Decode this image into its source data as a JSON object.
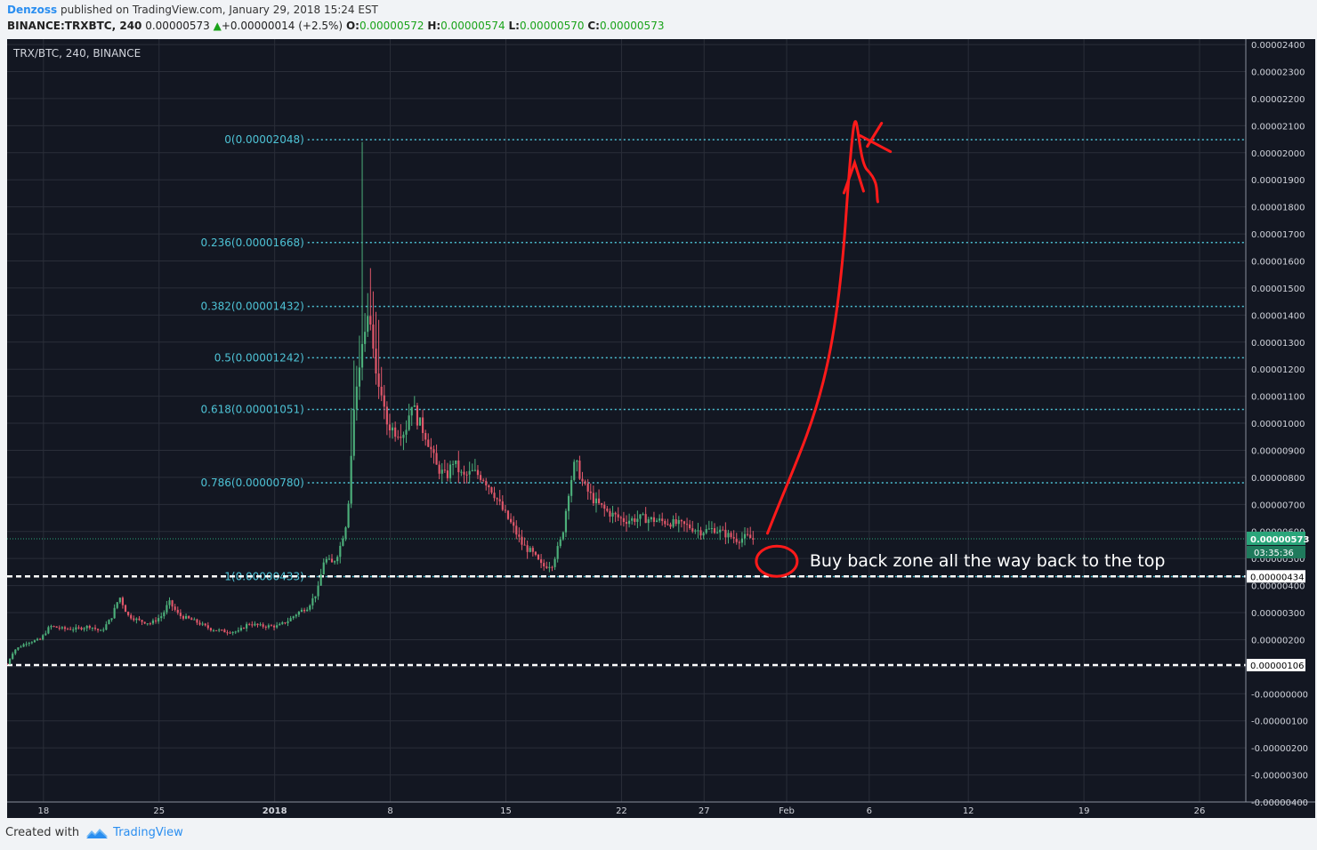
{
  "header": {
    "author": "Denzoss",
    "published_text": "published on TradingView.com, January 29, 2018 15:24 EST",
    "symbol": "BINANCE:TRXBTC, 240",
    "last": "0.00000573",
    "change": "+0.00000014 (+2.5%)",
    "open_label": "O:",
    "open": "0.00000572",
    "high_label": "H:",
    "high": "0.00000574",
    "low_label": "L:",
    "low": "0.00000570",
    "close_label": "C:",
    "close": "0.00000573"
  },
  "footer": {
    "created_with": "Created with",
    "brand": "TradingView"
  },
  "colors": {
    "background": "#131722",
    "grid": "#2a2e39",
    "fib": "#4ec3d6",
    "up": "#4caf7a",
    "down": "#e0576a",
    "annotation": "#ff1a1a",
    "price_badge": "#2aa57a"
  },
  "chart_data": {
    "type": "candlestick",
    "title": "TRX/BTC, 240, BINANCE",
    "ylim": [
      -4e-06,
      2.42e-05
    ],
    "y_ticks": [
      "0.00002400",
      "0.00002300",
      "0.00002200",
      "0.00002100",
      "0.00002000",
      "0.00001900",
      "0.00001800",
      "0.00001700",
      "0.00001600",
      "0.00001500",
      "0.00001400",
      "0.00001300",
      "0.00001200",
      "0.00001100",
      "0.00001000",
      "0.00000900",
      "0.00000800",
      "0.00000700",
      "0.00000600",
      "0.00000500",
      "0.00000400",
      "0.00000300",
      "0.00000200",
      "0.00000100",
      "-0.00000000",
      "-0.00000100",
      "-0.00000200",
      "-0.00000300",
      "-0.00000400"
    ],
    "y_tick_values": [
      2.4e-05,
      2.3e-05,
      2.2e-05,
      2.1e-05,
      2e-05,
      1.9e-05,
      1.8e-05,
      1.7e-05,
      1.6e-05,
      1.5e-05,
      1.4e-05,
      1.3e-05,
      1.2e-05,
      1.1e-05,
      1e-05,
      9e-06,
      8e-06,
      7e-06,
      6e-06,
      5e-06,
      4e-06,
      3e-06,
      2e-06,
      1e-06,
      0,
      -1e-06,
      -2e-06,
      -3e-06,
      -4e-06
    ],
    "x_ticks": [
      {
        "label": "18",
        "day": -14
      },
      {
        "label": "25",
        "day": -7
      },
      {
        "label": "2018",
        "day": 0
      },
      {
        "label": "8",
        "day": 7
      },
      {
        "label": "15",
        "day": 14
      },
      {
        "label": "22",
        "day": 21
      },
      {
        "label": "27",
        "day": 26
      },
      {
        "label": "Feb",
        "day": 31
      },
      {
        "label": "6",
        "day": 36
      },
      {
        "label": "12",
        "day": 42
      },
      {
        "label": "19",
        "day": 49
      },
      {
        "label": "26",
        "day": 56
      }
    ],
    "x_range_days": [
      -16.2,
      58.8
    ],
    "fib_levels": [
      {
        "label": "0(0.00002048)",
        "value": 2.048e-05
      },
      {
        "label": "0.236(0.00001668)",
        "value": 1.668e-05
      },
      {
        "label": "0.382(0.00001432)",
        "value": 1.432e-05
      },
      {
        "label": "0.5(0.00001242)",
        "value": 1.242e-05
      },
      {
        "label": "0.618(0.00001051)",
        "value": 1.051e-05
      },
      {
        "label": "0.786(0.00000780)",
        "value": 7.8e-06
      },
      {
        "label": "1(0.00000433)",
        "value": 4.33e-06
      }
    ],
    "dashed_levels": [
      {
        "label": "0.00000434",
        "value": 4.34e-06
      },
      {
        "label": "0.00000106",
        "value": 1.06e-06
      }
    ],
    "current_price": {
      "label": "0.00000573",
      "value": 5.73e-06,
      "countdown": "03:35:36"
    },
    "annotation_text": "Buy back zone all the way back to the top",
    "price_path": [
      [
        -16.2,
        1.1e-06
      ],
      [
        -15.8,
        1.6e-06
      ],
      [
        -15.0,
        1.9e-06
      ],
      [
        -14.2,
        2e-06
      ],
      [
        -13.6,
        2.5e-06
      ],
      [
        -12.8,
        2.4e-06
      ],
      [
        -12.0,
        2.4e-06
      ],
      [
        -11.2,
        2.5e-06
      ],
      [
        -10.5,
        2.3e-06
      ],
      [
        -9.9,
        2.8e-06
      ],
      [
        -9.4,
        3.6e-06
      ],
      [
        -8.9,
        2.9e-06
      ],
      [
        -8.2,
        2.7e-06
      ],
      [
        -7.5,
        2.6e-06
      ],
      [
        -6.8,
        2.9e-06
      ],
      [
        -6.4,
        3.4e-06
      ],
      [
        -5.8,
        2.9e-06
      ],
      [
        -4.9,
        2.7e-06
      ],
      [
        -3.9,
        2.4e-06
      ],
      [
        -3.0,
        2.3e-06
      ],
      [
        -2.2,
        2.3e-06
      ],
      [
        -1.6,
        2.6e-06
      ],
      [
        -0.8,
        2.5e-06
      ],
      [
        0.2,
        2.5e-06
      ],
      [
        0.8,
        2.7e-06
      ],
      [
        1.4,
        3e-06
      ],
      [
        2.0,
        3.2e-06
      ],
      [
        2.6,
        3.8e-06
      ],
      [
        3.0,
        5e-06
      ],
      [
        3.5,
        4.8e-06
      ],
      [
        3.9,
        5.3e-06
      ],
      [
        4.4,
        6.5e-06
      ],
      [
        4.8,
        1.05e-05
      ],
      [
        5.1,
        1.18e-05
      ],
      [
        5.4,
        1.35e-05
      ],
      [
        5.8,
        1.4e-05
      ],
      [
        6.3,
        1.12e-05
      ],
      [
        6.8,
        1e-05
      ],
      [
        7.3,
        9.7e-06
      ],
      [
        7.9,
        9.7e-06
      ],
      [
        8.3,
        1.08e-05
      ],
      [
        8.6,
        1.02e-05
      ],
      [
        9.2,
        9.5e-06
      ],
      [
        9.8,
        8.4e-06
      ],
      [
        10.4,
        8e-06
      ],
      [
        10.8,
        8.6e-06
      ],
      [
        11.4,
        8e-06
      ],
      [
        12.0,
        8.2e-06
      ],
      [
        12.6,
        8e-06
      ],
      [
        13.2,
        7.5e-06
      ],
      [
        13.8,
        6.8e-06
      ],
      [
        14.4,
        6.2e-06
      ],
      [
        15.0,
        5.5e-06
      ],
      [
        15.6,
        5.2e-06
      ],
      [
        16.2,
        4.7e-06
      ],
      [
        16.8,
        4.8e-06
      ],
      [
        17.4,
        5.8e-06
      ],
      [
        17.8,
        7.5e-06
      ],
      [
        18.2,
        8.6e-06
      ],
      [
        18.7,
        7.7e-06
      ],
      [
        19.4,
        7.1e-06
      ],
      [
        20.2,
        6.7e-06
      ],
      [
        21.2,
        6.4e-06
      ],
      [
        22.2,
        6.5e-06
      ],
      [
        23.2,
        6.4e-06
      ],
      [
        24.2,
        6.3e-06
      ],
      [
        25.0,
        6.2e-06
      ],
      [
        25.8,
        6e-06
      ],
      [
        26.6,
        6.1e-06
      ],
      [
        27.3,
        5.9e-06
      ],
      [
        28.0,
        5.7e-06
      ],
      [
        28.6,
        5.8e-06
      ],
      [
        29.0,
        5.7e-06
      ]
    ]
  }
}
